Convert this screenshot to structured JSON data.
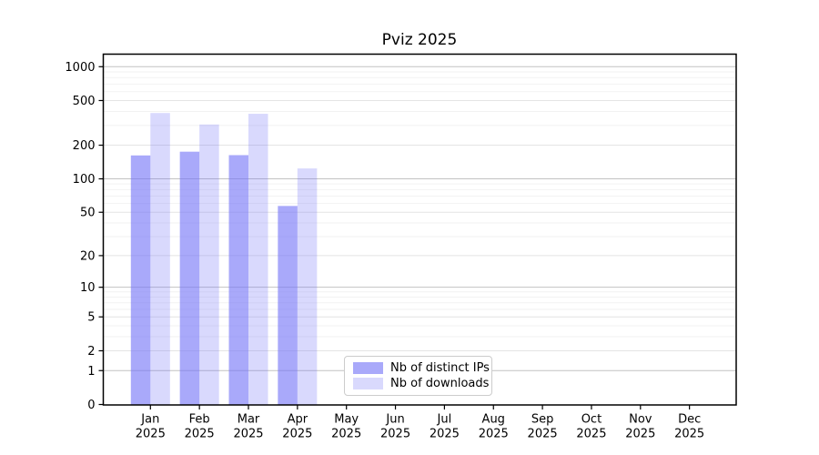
{
  "chart_data": {
    "type": "bar",
    "title": "Pviz 2025",
    "categories": [
      "Jan",
      "Feb",
      "Mar",
      "Apr",
      "May",
      "Jun",
      "Jul",
      "Aug",
      "Sep",
      "Oct",
      "Nov",
      "Dec"
    ],
    "category_year": "2025",
    "series": [
      {
        "name": "Nb of distinct IPs",
        "color": "rgba(116,116,247,0.62)",
        "values": [
          162,
          175,
          163,
          57,
          null,
          null,
          null,
          null,
          null,
          null,
          null,
          null
        ]
      },
      {
        "name": "Nb of downloads",
        "color": "rgba(116,116,247,0.27)",
        "values": [
          387,
          306,
          381,
          124,
          null,
          null,
          null,
          null,
          null,
          null,
          null,
          null
        ]
      }
    ],
    "yscale": "log(1+x)",
    "yticks": [
      0,
      1,
      2,
      5,
      10,
      20,
      50,
      100,
      200,
      500,
      1000
    ],
    "ylim": [
      0,
      1290
    ],
    "grid": true,
    "legend_position": "inside lower center",
    "colors": {
      "grid_major": "#c2c2c2",
      "grid_mid": "#e4e4e4",
      "grid_minor": "#f2f2f2",
      "axis": "#000000",
      "text": "#000000",
      "background": "#ffffff"
    }
  }
}
